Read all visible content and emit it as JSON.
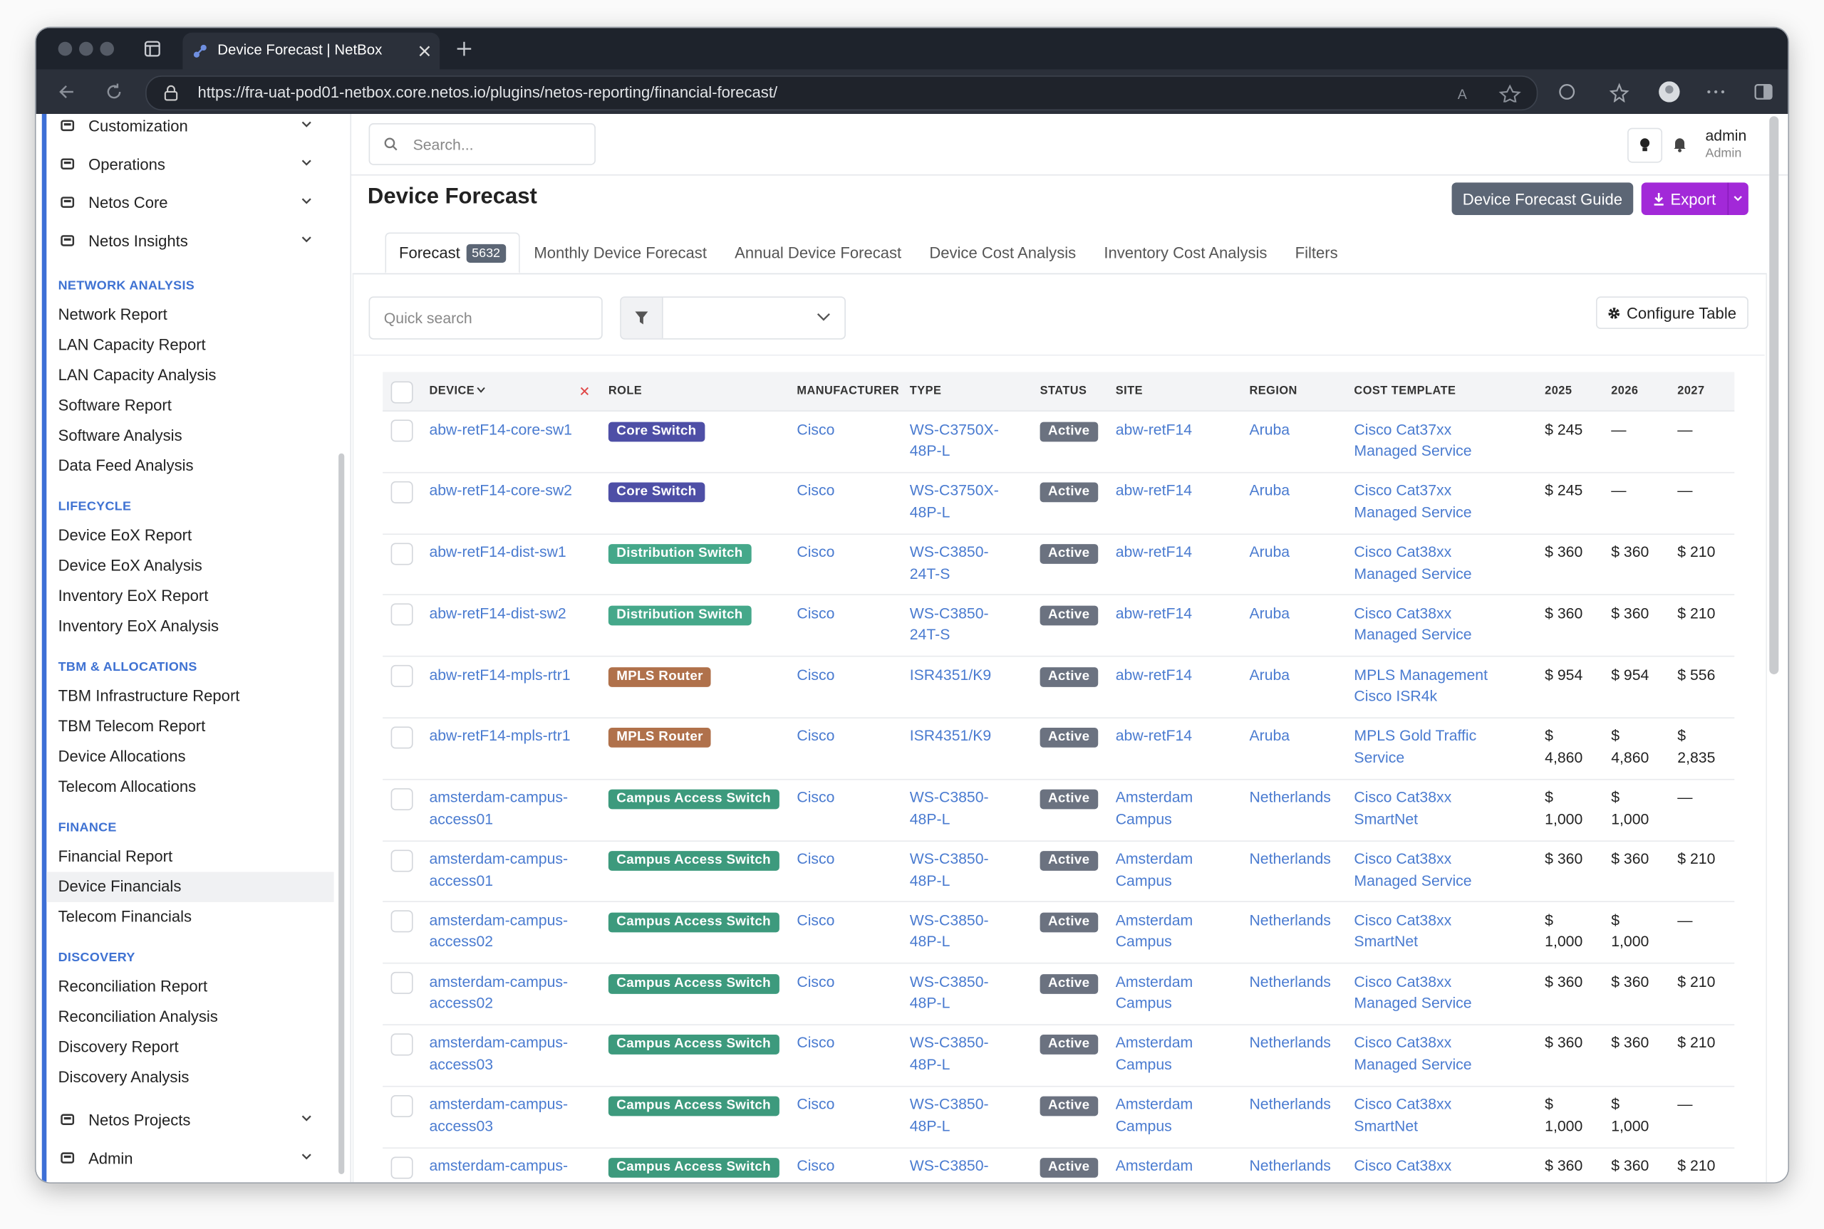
{
  "browser": {
    "tab_title": "Device Forecast | NetBox",
    "url": "https://fra-uat-pod01-netbox.core.netos.io/plugins/netos-reporting/financial-forecast/"
  },
  "sidebar": {
    "top_items": [
      "Customization",
      "Operations",
      "Netos Core",
      "Netos Insights"
    ],
    "sections": [
      {
        "heading": "NETWORK ANALYSIS",
        "items": [
          "Network Report",
          "LAN Capacity Report",
          "LAN Capacity Analysis",
          "Software Report",
          "Software Analysis",
          "Data Feed Analysis"
        ]
      },
      {
        "heading": "LIFECYCLE",
        "items": [
          "Device EoX Report",
          "Device EoX Analysis",
          "Inventory EoX Report",
          "Inventory EoX Analysis"
        ]
      },
      {
        "heading": "TBM & ALLOCATIONS",
        "items": [
          "TBM Infrastructure Report",
          "TBM Telecom Report",
          "Device Allocations",
          "Telecom Allocations"
        ]
      },
      {
        "heading": "FINANCE",
        "items": [
          "Financial Report",
          "Device Financials",
          "Telecom Financials"
        ]
      },
      {
        "heading": "DISCOVERY",
        "items": [
          "Reconciliation Report",
          "Reconciliation Analysis",
          "Discovery Report",
          "Discovery Analysis"
        ]
      }
    ],
    "active_item": "Device Financials",
    "bottom_items": [
      "Netos Projects",
      "Admin"
    ]
  },
  "header": {
    "search_placeholder": "Search...",
    "user": "admin",
    "role": "Admin"
  },
  "page": {
    "title": "Device Forecast",
    "guide_button": "Device Forecast Guide",
    "export_button": "Export"
  },
  "tabs": [
    {
      "label": "Forecast",
      "badge": 5632
    },
    {
      "label": "Monthly Device Forecast"
    },
    {
      "label": "Annual Device Forecast"
    },
    {
      "label": "Device Cost Analysis"
    },
    {
      "label": "Inventory Cost Analysis"
    },
    {
      "label": "Filters"
    }
  ],
  "toolbar": {
    "quick_search": "Quick search",
    "configure_button": "Configure Table"
  },
  "table": {
    "columns": [
      "DEVICE",
      "ROLE",
      "MANUFACTURER",
      "TYPE",
      "STATUS",
      "SITE",
      "REGION",
      "COST TEMPLATE",
      "2025",
      "2026",
      "2027"
    ],
    "role_colors": {
      "Core Switch": "#4e4fa6",
      "Distribution Switch": "#45a88a",
      "MPLS Router": "#b0714b",
      "Campus Access Switch": "#3d9a7d"
    },
    "rows": [
      [
        "abw-retF14-core-sw1",
        "Core Switch",
        "Cisco",
        "WS-C3750X-48P-L",
        "Active",
        "abw-retF14",
        "Aruba",
        "Cisco Cat37xx Managed Service",
        "$ 245",
        "—",
        "—"
      ],
      [
        "abw-retF14-core-sw2",
        "Core Switch",
        "Cisco",
        "WS-C3750X-48P-L",
        "Active",
        "abw-retF14",
        "Aruba",
        "Cisco Cat37xx Managed Service",
        "$ 245",
        "—",
        "—"
      ],
      [
        "abw-retF14-dist-sw1",
        "Distribution Switch",
        "Cisco",
        "WS-C3850-24T-S",
        "Active",
        "abw-retF14",
        "Aruba",
        "Cisco Cat38xx Managed Service",
        "$ 360",
        "$ 360",
        "$ 210"
      ],
      [
        "abw-retF14-dist-sw2",
        "Distribution Switch",
        "Cisco",
        "WS-C3850-24T-S",
        "Active",
        "abw-retF14",
        "Aruba",
        "Cisco Cat38xx Managed Service",
        "$ 360",
        "$ 360",
        "$ 210"
      ],
      [
        "abw-retF14-mpls-rtr1",
        "MPLS Router",
        "Cisco",
        "ISR4351/K9",
        "Active",
        "abw-retF14",
        "Aruba",
        "MPLS Management Cisco ISR4k",
        "$ 954",
        "$ 954",
        "$ 556"
      ],
      [
        "abw-retF14-mpls-rtr1",
        "MPLS Router",
        "Cisco",
        "ISR4351/K9",
        "Active",
        "abw-retF14",
        "Aruba",
        "MPLS Gold Traffic Service",
        "$ 4,860",
        "$ 4,860",
        "$ 2,835"
      ],
      [
        "amsterdam-campus-access01",
        "Campus Access Switch",
        "Cisco",
        "WS-C3850-48P-L",
        "Active",
        "Amsterdam Campus",
        "Netherlands",
        "Cisco Cat38xx SmartNet",
        "$ 1,000",
        "$ 1,000",
        "—"
      ],
      [
        "amsterdam-campus-access01",
        "Campus Access Switch",
        "Cisco",
        "WS-C3850-48P-L",
        "Active",
        "Amsterdam Campus",
        "Netherlands",
        "Cisco Cat38xx Managed Service",
        "$ 360",
        "$ 360",
        "$ 210"
      ],
      [
        "amsterdam-campus-access02",
        "Campus Access Switch",
        "Cisco",
        "WS-C3850-48P-L",
        "Active",
        "Amsterdam Campus",
        "Netherlands",
        "Cisco Cat38xx SmartNet",
        "$ 1,000",
        "$ 1,000",
        "—"
      ],
      [
        "amsterdam-campus-access02",
        "Campus Access Switch",
        "Cisco",
        "WS-C3850-48P-L",
        "Active",
        "Amsterdam Campus",
        "Netherlands",
        "Cisco Cat38xx Managed Service",
        "$ 360",
        "$ 360",
        "$ 210"
      ],
      [
        "amsterdam-campus-access03",
        "Campus Access Switch",
        "Cisco",
        "WS-C3850-48P-L",
        "Active",
        "Amsterdam Campus",
        "Netherlands",
        "Cisco Cat38xx Managed Service",
        "$ 360",
        "$ 360",
        "$ 210"
      ],
      [
        "amsterdam-campus-access03",
        "Campus Access Switch",
        "Cisco",
        "WS-C3850-48P-L",
        "Active",
        "Amsterdam Campus",
        "Netherlands",
        "Cisco Cat38xx SmartNet",
        "$ 1,000",
        "$ 1,000",
        "—"
      ],
      [
        "amsterdam-campus-",
        "Campus Access Switch",
        "Cisco",
        "WS-C3850-",
        "Active",
        "Amsterdam",
        "Netherlands",
        "Cisco Cat38xx",
        "$ 360",
        "$ 360",
        "$ 210"
      ]
    ]
  }
}
